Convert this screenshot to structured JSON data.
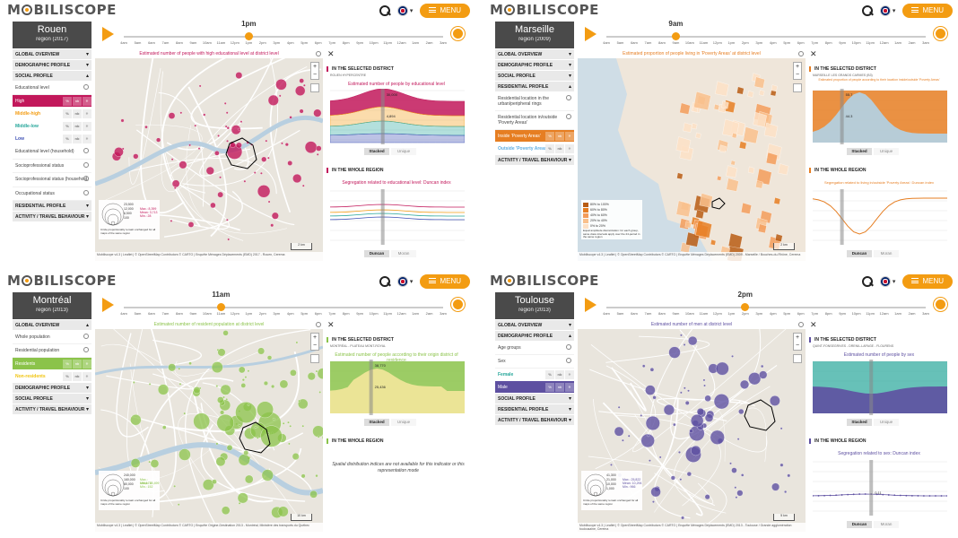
{
  "app": {
    "logo": "M BILISCOPE",
    "menu_label": "MENU"
  },
  "hours": [
    "4am",
    "5am",
    "6am",
    "7am",
    "8am",
    "9am",
    "10am",
    "11am",
    "12pm",
    "1pm",
    "2pm",
    "3pm",
    "4pm",
    "5pm",
    "6pm",
    "7pm",
    "8pm",
    "9pm",
    "10pm",
    "11pm",
    "12am",
    "1am",
    "2am",
    "3am"
  ],
  "panels": [
    {
      "city": "Rouen",
      "region": "region (2017)",
      "time": "1pm",
      "accent": "#c2185b",
      "map_title": "Estimated number of people with high educational level at district level",
      "sections": [
        "GLOBAL OVERVIEW",
        "DEMOGRAPHIC PROFILE",
        "SOCIAL PROFILE",
        "RESIDENTIAL PROFILE",
        "ACTIVITY / TRAVEL BEHAVIOUR"
      ],
      "items": [
        "Educational level",
        "Educational level (household)",
        "Socioprofessional status",
        "Socioprofessional status (household)",
        "Occupational status"
      ],
      "options": [
        {
          "label": "High",
          "color": "#c2185b",
          "selected": true
        },
        {
          "label": "Middle-high",
          "color": "#f39c12",
          "selected": false
        },
        {
          "label": "Middle-low",
          "color": "#26a69a",
          "selected": false
        },
        {
          "label": "Low",
          "color": "#3f51b5",
          "selected": false
        }
      ],
      "btn": [
        "%",
        "nb",
        "✳"
      ],
      "legend": [
        "23,500",
        "12,000",
        "6,500",
        "100",
        "Max.: 8,399",
        "Mean: 3,713",
        "Min.: 28",
        "Circle proportionality remain unchanged for all maps of the same region"
      ],
      "credits": "Mobiliscope v4.3 | Leaflet | © OpenStreetMap Contributors © CARTO | Enquête Ménages Déplacements (EMD) 2017 - Rouen, Cerema",
      "scale": [
        "2 km",
        "1 mi"
      ],
      "right_h1": "IN THE SELECTED DISTRICT",
      "right_sub": "ROUEN HYPERCENTRE",
      "chart_title": "Estimated number of people by educational level",
      "toggle": [
        "Stacked",
        "Unique"
      ],
      "right_h2": "IN THE WHOLE REGION",
      "chart2_title": "Segregation related to educational level: Duncan index",
      "toggle2": [
        "Duncan",
        "Moran"
      ],
      "readout": [
        "30,000",
        "4,894"
      ]
    },
    {
      "city": "Marseille",
      "region": "region (2009)",
      "time": "9am",
      "accent": "#e67e22",
      "map_title": "Estimated proportion of people living in 'Poverty Areas' at district level",
      "sections": [
        "GLOBAL OVERVIEW",
        "DEMOGRAPHIC PROFILE",
        "SOCIAL PROFILE",
        "RESIDENTIAL PROFILE",
        "ACTIVITY / TRAVEL BEHAVIOUR"
      ],
      "items": [
        "Residential location in the urban/peripheral rings",
        "Residential location in/outside 'Poverty Areas'"
      ],
      "options": [
        {
          "label": "Inside 'Poverty Areas'",
          "color": "#e67e22",
          "selected": true
        },
        {
          "label": "Outside 'Poverty Areas'",
          "color": "#5dade2",
          "selected": false
        }
      ],
      "btn": [
        "%",
        "nb",
        "✳"
      ],
      "legend": [
        "80% to 100%",
        "60% to 80%",
        "40% to 60%",
        "20% to 40%",
        "0% to 20%",
        "Equal amplitude discretization: for each group, same class intervals apply over the 24-period in the same region"
      ],
      "credits": "Mobiliscope v4.3 | Leaflet | © OpenStreetMap Contributors © CARTO | Enquête Ménages Déplacements (EMD) 2009 - Marseille / Bouches-du-Rhône, Cerema",
      "scale": [
        "2 km",
        "1 mi"
      ],
      "right_h1": "IN THE SELECTED DISTRICT",
      "right_sub": "MARSEILLE LES GRANDS CARMES (B3)",
      "chart_title": "Estimated proportion of people according to their location inside/outside 'Poverty Areas'",
      "toggle": [
        "Stacked",
        "Unique"
      ],
      "right_h2": "IN THE WHOLE REGION",
      "chart2_title": "Segregation related to living in/outside 'Poverty Areas': Duncan index",
      "toggle2": [
        "Duncan",
        "Moran"
      ],
      "readout": [
        "55.7",
        "44.3"
      ]
    },
    {
      "city": "Montréal",
      "region": "region (2013)",
      "time": "11am",
      "accent": "#8bc34a",
      "map_title": "Estimated number of resident population at district level",
      "sections": [
        "GLOBAL OVERVIEW",
        "DEMOGRAPHIC PROFILE",
        "SOCIAL PROFILE",
        "ACTIVITY / TRAVEL BEHAVIOUR"
      ],
      "items": [
        "Whole population",
        "Residential population"
      ],
      "options": [
        {
          "label": "Residents",
          "color": "#8bc34a",
          "selected": true
        },
        {
          "label": "Non-residents",
          "color": "#f1c40f",
          "selected": false
        }
      ],
      "btn": [
        "%",
        "nb",
        "✳"
      ],
      "legend": [
        "240,000",
        "160,000",
        "80,000",
        "100",
        "Max.: 196,174",
        "Mean: 35,499",
        "Min.: 152",
        "Circle proportionality remain unchanged for all maps of the same region"
      ],
      "credits": "Mobiliscope v4.3 | Leaflet | © OpenStreetMap Contributors © CARTO | Enquête Origine-Destination 2013 - Montréal, Ministère des transports du Québec",
      "scale": [
        "10 km",
        "5 mi"
      ],
      "right_h1": "IN THE SELECTED DISTRICT",
      "right_sub": "MONTRÉAL - PLATEAU MONT-ROYAL",
      "chart_title": "Estimated number of people according to their origin district of residence",
      "toggle": [
        "Stacked",
        "Unique"
      ],
      "right_h2": "IN THE WHOLE REGION",
      "note": "Spatial distribution indices are not available for this indicator or this representation mode",
      "readout": [
        "38,770",
        "25,436"
      ]
    },
    {
      "city": "Toulouse",
      "region": "region (2013)",
      "time": "2pm",
      "accent": "#5e50a1",
      "map_title": "Estimated number of men at district level",
      "sections": [
        "GLOBAL OVERVIEW",
        "DEMOGRAPHIC PROFILE",
        "SOCIAL PROFILE",
        "RESIDENTIAL PROFILE",
        "ACTIVITY / TRAVEL BEHAVIOUR"
      ],
      "items": [
        "Age groups",
        "Sex"
      ],
      "options": [
        {
          "label": "Female",
          "color": "#26a69a",
          "selected": false
        },
        {
          "label": "Male",
          "color": "#5e50a1",
          "selected": true
        }
      ],
      "btn": [
        "%",
        "nb",
        "✳"
      ],
      "legend": [
        "41,300",
        "21,000",
        "10,000",
        "1,000",
        "Max.: 25,822",
        "Mean: 10,294",
        "Min.: 966",
        "Circle proportionality remain unchanged for all maps of the same region"
      ],
      "credits": "Mobiliscope v4.3 | Leaflet | © OpenStreetMap Contributors © CARTO | Enquête Ménages Déplacements (EMD) 2013 - Toulouse / Grande agglomération toulousaine, Cerema",
      "scale": [
        "5 km",
        "5 mi"
      ],
      "right_h1": "IN THE SELECTED DISTRICT",
      "right_sub": "QUINT-FONSEGRIVES - DRENIL-LAPAGE - FLOURENS",
      "chart_title": "Estimated number of people by sex",
      "toggle": [
        "Stacked",
        "Unique"
      ],
      "right_h2": "IN THE WHOLE REGION",
      "chart2_title": "Segregation related to sex: Duncan index",
      "toggle2": [
        "Duncan",
        "Moran"
      ],
      "readout": [
        "0.11"
      ]
    }
  ]
}
